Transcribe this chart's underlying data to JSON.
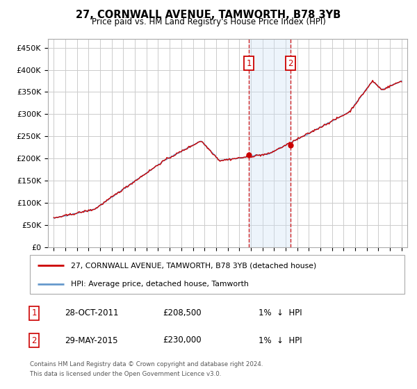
{
  "title": "27, CORNWALL AVENUE, TAMWORTH, B78 3YB",
  "subtitle": "Price paid vs. HM Land Registry's House Price Index (HPI)",
  "legend_line1": "27, CORNWALL AVENUE, TAMWORTH, B78 3YB (detached house)",
  "legend_line2": "HPI: Average price, detached house, Tamworth",
  "sale1_label": "1",
  "sale1_date": "28-OCT-2011",
  "sale1_price": 208500,
  "sale1_text": "1%  ↓  HPI",
  "sale2_label": "2",
  "sale2_date": "29-MAY-2015",
  "sale2_price": 230000,
  "sale2_text": "1%  ↓  HPI",
  "footnote1": "Contains HM Land Registry data © Crown copyright and database right 2024.",
  "footnote2": "This data is licensed under the Open Government Licence v3.0.",
  "sale1_x": 2011.83,
  "sale2_x": 2015.42,
  "ylim": [
    0,
    470000
  ],
  "xlim": [
    1994.5,
    2025.5
  ],
  "line_color_red": "#cc0000",
  "line_color_blue": "#6699cc",
  "marker_box_color": "#cc0000",
  "shade_color": "#cce0f5",
  "grid_color": "#cccccc",
  "bg_color": "#ffffff",
  "title_color": "#000000",
  "yticks": [
    0,
    50000,
    100000,
    150000,
    200000,
    250000,
    300000,
    350000,
    400000,
    450000
  ],
  "ytick_labels": [
    "£0",
    "£50K",
    "£100K",
    "£150K",
    "£200K",
    "£250K",
    "£300K",
    "£350K",
    "£400K",
    "£450K"
  ],
  "xticks": [
    1995,
    1996,
    1997,
    1998,
    1999,
    2000,
    2001,
    2002,
    2003,
    2004,
    2005,
    2006,
    2007,
    2008,
    2009,
    2010,
    2011,
    2012,
    2013,
    2014,
    2015,
    2016,
    2017,
    2018,
    2019,
    2020,
    2021,
    2022,
    2023,
    2024,
    2025
  ]
}
